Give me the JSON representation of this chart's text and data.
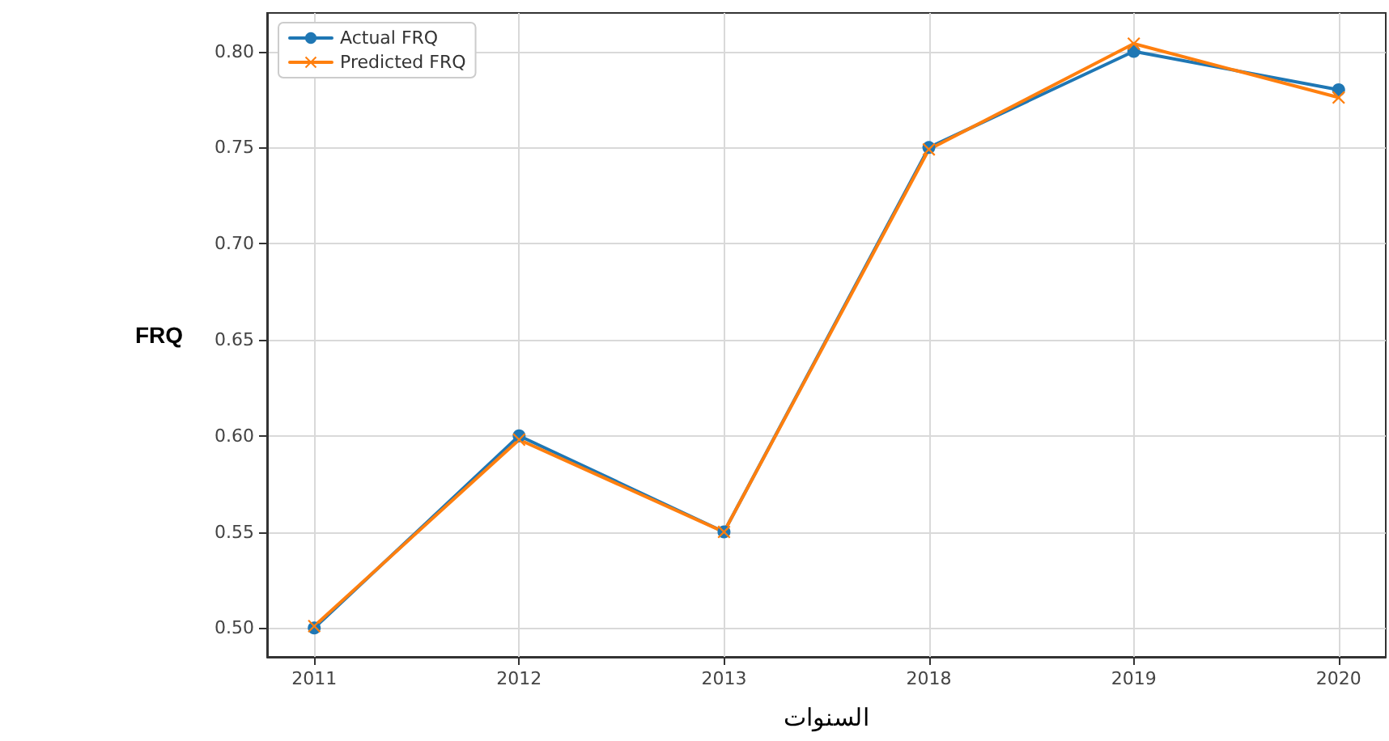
{
  "chart_data": {
    "type": "line",
    "xlabel": "السنوات",
    "ylabel": "FRQ",
    "categories": [
      "2011",
      "2012",
      "2013",
      "2018",
      "2019",
      "2020"
    ],
    "series": [
      {
        "name": "Actual FRQ",
        "color": "#1f77b4",
        "marker": "circle",
        "values": [
          0.5,
          0.6,
          0.55,
          0.75,
          0.8,
          0.78
        ]
      },
      {
        "name": "Predicted FRQ",
        "color": "#ff7f0e",
        "marker": "cross",
        "values": [
          0.501,
          0.598,
          0.55,
          0.749,
          0.804,
          0.776
        ]
      }
    ],
    "ylim": [
      0.485,
      0.82
    ],
    "yticks": [
      {
        "value": 0.5,
        "label": "0.50"
      },
      {
        "value": 0.55,
        "label": "0.55"
      },
      {
        "value": 0.6,
        "label": "0.60"
      },
      {
        "value": 0.65,
        "label": "0.65"
      },
      {
        "value": 0.7,
        "label": "0.70"
      },
      {
        "value": 0.75,
        "label": "0.75"
      },
      {
        "value": 0.8,
        "label": "0.80"
      }
    ],
    "grid": true,
    "legend": "top left",
    "line_style": "solid"
  }
}
